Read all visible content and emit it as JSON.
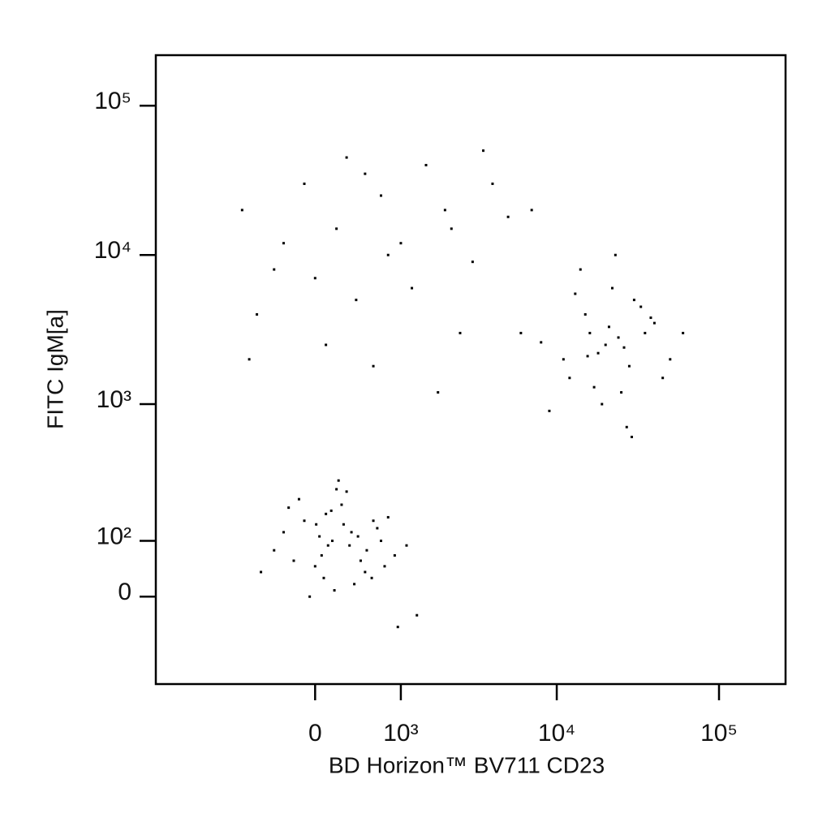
{
  "chart_data": {
    "type": "scatter",
    "x_label": "BD Horizon™ BV711 CD23",
    "y_label": "FITC IgM[a]",
    "xscale": "biexponential",
    "yscale": "biexponential",
    "color": "#000000",
    "xlim": [
      -3080,
      257000
    ],
    "ylim": [
      -185,
      218000
    ],
    "xticks": [
      0,
      {
        "value": 1000,
        "label": "10³"
      },
      {
        "value": 10000,
        "label": "10⁴"
      },
      {
        "value": 100000,
        "label": "10⁵"
      }
    ],
    "yticks": [
      0,
      {
        "value": 100,
        "label": "10²"
      },
      {
        "value": 1000,
        "label": "10³"
      },
      {
        "value": 10000,
        "label": "10⁴"
      },
      {
        "value": 100000,
        "label": "10⁵"
      }
    ],
    "x": [
      120,
      -200,
      350,
      600,
      80,
      -400,
      250,
      900,
      40,
      500,
      -100,
      180,
      700,
      300,
      -300,
      450,
      1100,
      150,
      0,
      650,
      -550,
      220,
      800,
      380,
      60,
      -150,
      1300,
      270,
      520,
      100,
      -50,
      420,
      750,
      200,
      -250,
      330,
      950,
      10,
      580,
      160,
      20000,
      15000,
      28000,
      35000,
      12000,
      22000,
      18000,
      40000,
      9000,
      25000,
      30000,
      16000,
      50000,
      14000,
      24000,
      19000,
      33000,
      11000,
      27000,
      21000,
      45000,
      13000,
      26000,
      17000,
      38000,
      8000,
      23000,
      60000,
      29000,
      15500,
      -800,
      -400,
      -100,
      200,
      400,
      700,
      1000,
      1500,
      2000,
      3000,
      4000,
      5000,
      -600,
      100,
      600,
      1200,
      2500,
      -300,
      300,
      800,
      1800,
      3500,
      7000,
      -700,
      0,
      500,
      2200,
      6000
    ],
    "y": [
      90,
      60,
      120,
      150,
      30,
      80,
      200,
      70,
      110,
      40,
      150,
      10,
      100,
      250,
      120,
      60,
      90,
      180,
      50,
      130,
      40,
      300,
      160,
      20,
      70,
      220,
      -30,
      140,
      80,
      170,
      0,
      110,
      50,
      260,
      190,
      90,
      -50,
      140,
      30,
      100,
      2500,
      4000,
      1800,
      3000,
      1500,
      6000,
      2200,
      3500,
      900,
      1200,
      5000,
      3000,
      2000,
      8000,
      2800,
      1000,
      4500,
      2000,
      700,
      3300,
      1500,
      5500,
      2400,
      1300,
      3800,
      2600,
      10000,
      3000,
      600,
      2100,
      20000,
      8000,
      30000,
      15000,
      5000,
      25000,
      12000,
      40000,
      20000,
      9000,
      30000,
      18000,
      4000,
      2500,
      1800,
      6000,
      3000,
      12000,
      45000,
      10000,
      1200,
      50000,
      20000,
      2000,
      7000,
      35000,
      15000,
      3000
    ]
  }
}
